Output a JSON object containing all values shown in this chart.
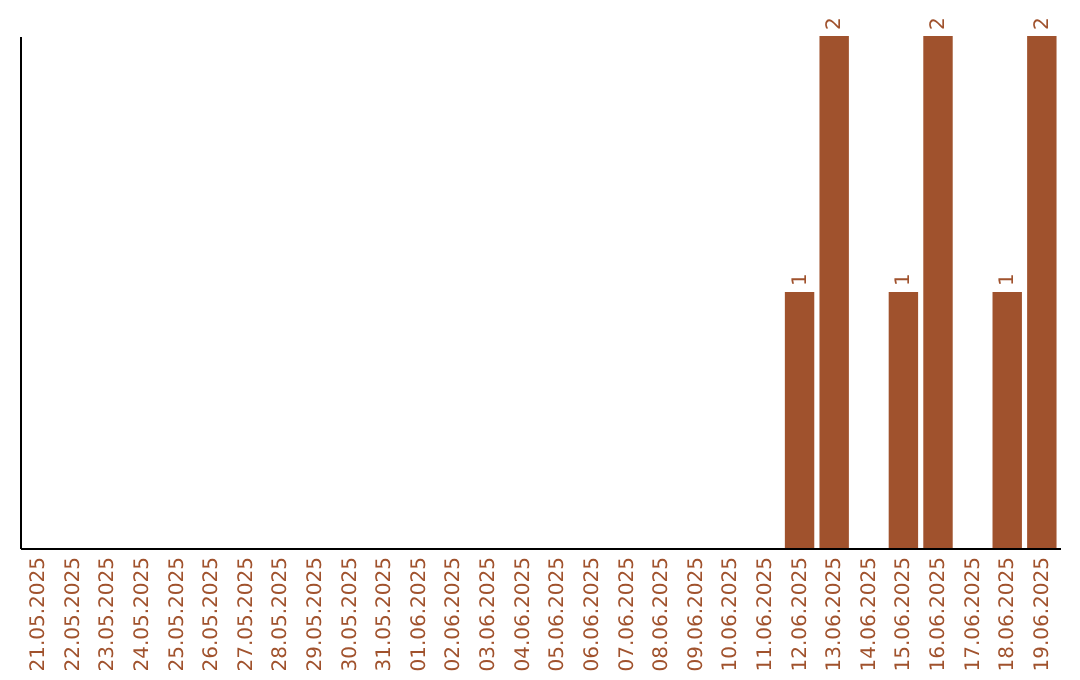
{
  "chart_data": {
    "type": "bar",
    "categories": [
      "21.05.2025",
      "22.05.2025",
      "23.05.2025",
      "24.05.2025",
      "25.05.2025",
      "26.05.2025",
      "27.05.2025",
      "28.05.2025",
      "29.05.2025",
      "30.05.2025",
      "31.05.2025",
      "01.06.2025",
      "02.06.2025",
      "03.06.2025",
      "04.06.2025",
      "05.06.2025",
      "06.06.2025",
      "07.06.2025",
      "08.06.2025",
      "09.06.2025",
      "10.06.2025",
      "11.06.2025",
      "12.06.2025",
      "13.06.2025",
      "14.06.2025",
      "15.06.2025",
      "16.06.2025",
      "17.06.2025",
      "18.06.2025",
      "19.06.2025"
    ],
    "values": [
      null,
      null,
      null,
      null,
      null,
      null,
      null,
      null,
      null,
      null,
      null,
      null,
      null,
      null,
      null,
      null,
      null,
      null,
      null,
      null,
      null,
      null,
      1,
      2,
      null,
      1,
      2,
      null,
      1,
      2
    ],
    "data_labels": true,
    "color": "#a0522d",
    "tick_labels": "x",
    "grid": false
  }
}
